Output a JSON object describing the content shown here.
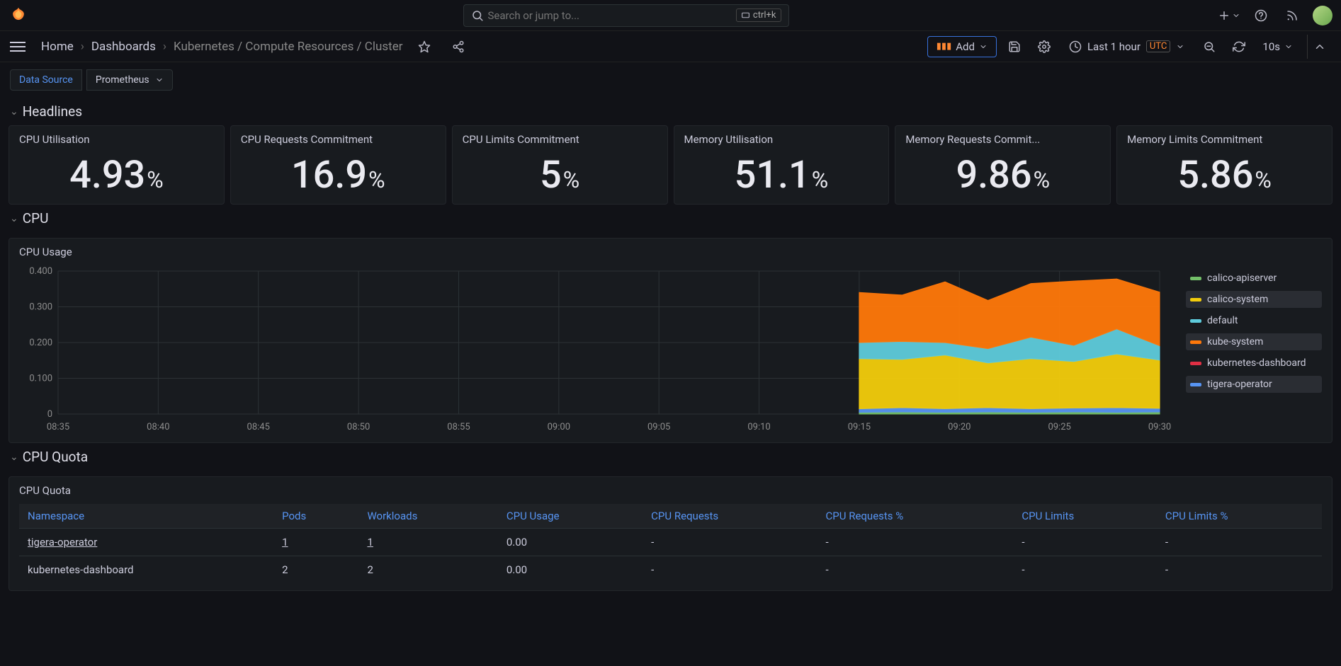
{
  "colors": {
    "bg": "#111217",
    "panel": "#181b1f",
    "link": "#5794f2",
    "accent": "#ff8833",
    "border": "#2c3235"
  },
  "topbar": {
    "search_placeholder": "Search or jump to...",
    "shortcut": "ctrl+k"
  },
  "toolbar": {
    "breadcrumbs": [
      "Home",
      "Dashboards",
      "Kubernetes / Compute Resources / Cluster"
    ],
    "add_label": "Add",
    "time_label": "Last 1 hour",
    "time_zone": "UTC",
    "refresh_interval": "10s"
  },
  "variables": {
    "label": "Data Source",
    "value": "Prometheus"
  },
  "rows": {
    "headlines": "Headlines",
    "cpu": "CPU",
    "cpu_quota": "CPU Quota"
  },
  "stats": [
    {
      "title": "CPU Utilisation",
      "value": "4.93",
      "unit": "%"
    },
    {
      "title": "CPU Requests Commitment",
      "value": "16.9",
      "unit": "%"
    },
    {
      "title": "CPU Limits Commitment",
      "value": "5",
      "unit": "%"
    },
    {
      "title": "Memory Utilisation",
      "value": "51.1",
      "unit": "%"
    },
    {
      "title": "Memory Requests Commit...",
      "value": "9.86",
      "unit": "%"
    },
    {
      "title": "Memory Limits Commitment",
      "value": "5.86",
      "unit": "%"
    }
  ],
  "cpu_chart": {
    "title": "CPU Usage",
    "ylim": [
      0,
      0.4
    ],
    "yticks": [
      0,
      0.1,
      0.2,
      0.3,
      0.4
    ],
    "ytick_labels": [
      "0",
      "0.100",
      "0.200",
      "0.300",
      "0.400"
    ],
    "xticks": [
      "08:35",
      "08:40",
      "08:45",
      "08:50",
      "08:55",
      "09:00",
      "09:05",
      "09:10",
      "09:15",
      "09:20",
      "09:25",
      "09:30"
    ],
    "background": "#181b1f",
    "grid_color": "#2c3235",
    "axis_label_color": "#8e8e8e",
    "legend": [
      {
        "label": "calico-apiserver",
        "color": "#73bf69",
        "selected": false
      },
      {
        "label": "calico-system",
        "color": "#f2cc0c",
        "selected": true
      },
      {
        "label": "default",
        "color": "#5ecbdb",
        "selected": false
      },
      {
        "label": "kube-system",
        "color": "#ff780a",
        "selected": true
      },
      {
        "label": "kubernetes-dashboard",
        "color": "#e02f44",
        "selected": false
      },
      {
        "label": "tigera-operator",
        "color": "#5794f2",
        "selected": true
      }
    ],
    "data_start_index": 8,
    "series": [
      {
        "name": "calico-apiserver",
        "color": "#73bf69",
        "values": [
          0.005,
          0.006,
          0.005,
          0.006,
          0.005,
          0.006,
          0.005,
          0.006
        ]
      },
      {
        "name": "tigera-operator",
        "color": "#5794f2",
        "values": [
          0.01,
          0.012,
          0.01,
          0.012,
          0.01,
          0.011,
          0.013,
          0.01
        ]
      },
      {
        "name": "calico-system",
        "color": "#f2cc0c",
        "values": [
          0.14,
          0.135,
          0.15,
          0.125,
          0.14,
          0.13,
          0.15,
          0.135
        ]
      },
      {
        "name": "default",
        "color": "#5ecbdb",
        "values": [
          0.045,
          0.05,
          0.035,
          0.04,
          0.06,
          0.045,
          0.07,
          0.04
        ]
      },
      {
        "name": "kube-system",
        "color": "#ff780a",
        "values": [
          0.14,
          0.13,
          0.17,
          0.135,
          0.15,
          0.18,
          0.14,
          0.15
        ]
      }
    ]
  },
  "cpu_quota": {
    "title": "CPU Quota",
    "columns": [
      "Namespace",
      "Pods",
      "Workloads",
      "CPU Usage",
      "CPU Requests",
      "CPU Requests %",
      "CPU Limits",
      "CPU Limits %"
    ],
    "rows": [
      {
        "namespace": "tigera-operator",
        "pods": "1",
        "workloads": "1",
        "cpu_usage": "0.00",
        "cpu_req": "-",
        "cpu_req_pct": "-",
        "cpu_lim": "-",
        "cpu_lim_pct": "-",
        "link": true
      },
      {
        "namespace": "kubernetes-dashboard",
        "pods": "2",
        "workloads": "2",
        "cpu_usage": "0.00",
        "cpu_req": "-",
        "cpu_req_pct": "-",
        "cpu_lim": "-",
        "cpu_lim_pct": "-",
        "link": false
      }
    ]
  }
}
